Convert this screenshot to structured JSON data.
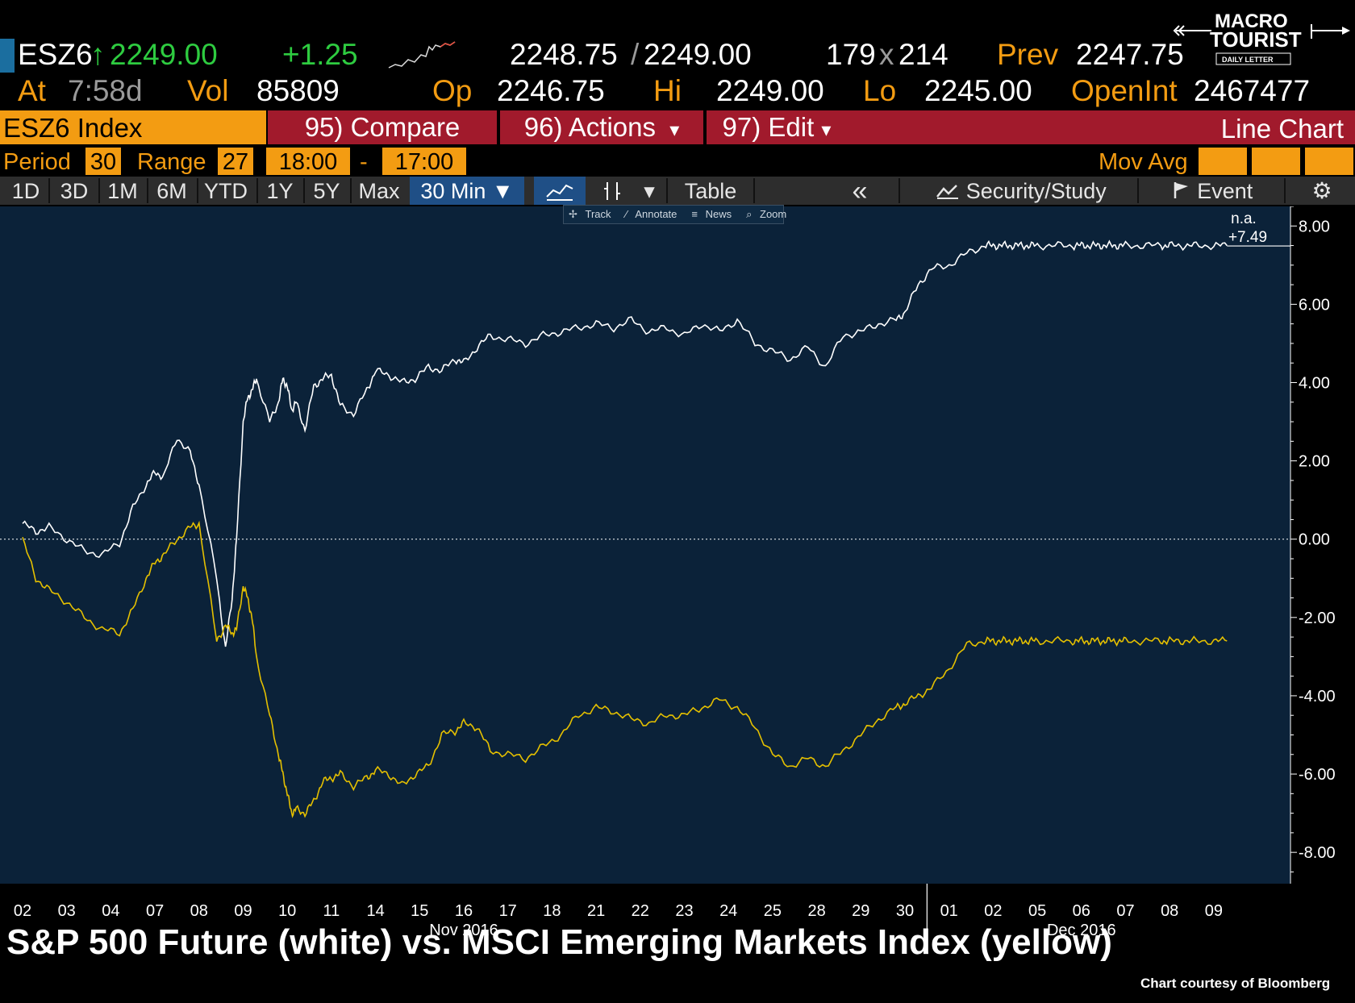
{
  "quote": {
    "ticker": "ESZ6",
    "last_arrow": "↑",
    "last": "2249.00",
    "change": "+1.25",
    "bid_ask_bid": "2248.75",
    "bid_ask_sep": "/",
    "bid_ask_ask": "2249.00",
    "size_bid": "179",
    "size_sep": "x",
    "size_ask": "214",
    "prev_label": "Prev",
    "prev": "2247.75",
    "at_label": "At",
    "at_time": "7:58d",
    "vol_label": "Vol",
    "vol": "85809",
    "op_label": "Op",
    "op": "2246.75",
    "hi_label": "Hi",
    "hi": "2249.00",
    "lo_label": "Lo",
    "lo": "2245.00",
    "openint_label": "OpenInt",
    "openint": "2467477"
  },
  "logo": {
    "line1": "MACRO",
    "line2": "TOURIST",
    "line3": "DAILY LETTER"
  },
  "titlebar": {
    "index": "ESZ6 Index",
    "compare": "95) Compare",
    "actions": "96) Actions",
    "edit": "97) Edit",
    "chart_type": "Line Chart",
    "dropdown_glyph": "▾"
  },
  "settings": {
    "period_label": "Period",
    "period_value": "30",
    "range_label": "Range",
    "range_value": "27",
    "start_time": "18:00",
    "dash": "-",
    "end_time": "17:00",
    "mov_avg_label": "Mov Avg"
  },
  "toolbar": {
    "ranges": [
      "1D",
      "3D",
      "1M",
      "6M",
      "YTD",
      "1Y",
      "5Y",
      "Max"
    ],
    "interval": "30 Min ▼",
    "table": "Table",
    "back": "«",
    "security_study": "Security/Study",
    "event": "Event",
    "settings_icon": "gear-icon"
  },
  "mini_toolbar": {
    "track": "Track",
    "annotate": "Annotate",
    "news": "News",
    "zoom": "Zoom"
  },
  "caption": {
    "title": "S&P 500 Future (white) vs. MSCI Emerging Markets Index (yellow)",
    "credit": "Chart courtesy of Bloomberg"
  },
  "colors": {
    "background": "#000000",
    "plot_bg": "#0b2239",
    "orange": "#f39c12",
    "green": "#2ecc40",
    "red_bar": "#a11a2c",
    "sp500_line": "#ffffff",
    "em_line": "#e5c000"
  },
  "chart_data": {
    "type": "line",
    "title": "S&P 500 Future (white) vs. MSCI Emerging Markets Index (yellow)",
    "ylabel": "",
    "xlabel": "",
    "ylim": [
      -8.8,
      8.5
    ],
    "yticks": [
      "8.00",
      "6.00",
      "4.00",
      "2.00",
      "0.00",
      "-2.00",
      "-4.00",
      "-6.00",
      "-8.00"
    ],
    "ytick_values": [
      8,
      6,
      4,
      2,
      0,
      -2,
      -4,
      -6,
      -8
    ],
    "categories": [
      "02",
      "03",
      "04",
      "07",
      "08",
      "09",
      "10",
      "11",
      "14",
      "15",
      "16",
      "17",
      "18",
      "21",
      "22",
      "23",
      "24",
      "25",
      "28",
      "29",
      "30",
      "01",
      "02",
      "05",
      "06",
      "07",
      "08",
      "09"
    ],
    "month_labels": [
      {
        "label": "Nov 2016",
        "from_index": 0,
        "to_index": 20
      },
      {
        "label": "Dec 2016",
        "from_index": 21,
        "to_index": 27
      }
    ],
    "last_value_annotation": {
      "top": "n.a.",
      "bottom": "+7.49",
      "value": 7.49
    },
    "zero_line": true,
    "series": [
      {
        "name": "S&P 500 Future",
        "color": "#ffffff",
        "x": [
          0,
          0.3,
          0.6,
          1,
          1.4,
          1.8,
          2.2,
          2.5,
          2.8,
          3,
          3.2,
          3.5,
          3.8,
          4,
          4.4,
          4.6,
          4.75,
          4.85,
          5,
          5.1,
          5.2,
          5.3,
          5.6,
          5.8,
          5.9,
          6,
          6.1,
          6.2,
          6.4,
          6.6,
          6.8,
          7,
          7.2,
          7.5,
          7.8,
          8,
          8.3,
          8.6,
          8.9,
          9.2,
          9.5,
          9.8,
          10,
          10.3,
          10.6,
          11,
          11.4,
          11.8,
          12.2,
          12.6,
          13,
          13.4,
          13.8,
          14.2,
          14.6,
          15,
          15.4,
          15.8,
          16.2,
          16.6,
          17,
          17.4,
          17.8,
          18.2,
          18.6,
          19,
          19.4,
          19.8,
          20,
          20.3,
          20.6,
          21,
          21.4,
          21.8,
          22,
          22.2,
          22.4,
          22.6,
          22.8,
          23,
          23.4,
          23.8,
          24,
          24.2,
          24.4,
          24.6,
          24.8,
          25,
          25.4,
          25.8,
          26,
          26.3,
          26.6,
          27,
          27.3
        ],
        "values": [
          0.4,
          0.2,
          0.3,
          0.0,
          -0.3,
          -0.4,
          -0.1,
          0.8,
          1.4,
          1.7,
          1.6,
          2.6,
          2.2,
          1.4,
          -1.0,
          -2.8,
          -1.5,
          0.0,
          3.0,
          3.6,
          3.8,
          4.1,
          3.0,
          3.5,
          4.1,
          3.9,
          3.3,
          3.5,
          2.8,
          3.9,
          4.1,
          4.2,
          3.4,
          3.2,
          3.8,
          4.3,
          4.2,
          4.0,
          4.1,
          4.4,
          4.3,
          4.6,
          4.5,
          4.9,
          5.2,
          5.1,
          5.0,
          5.2,
          5.3,
          5.4,
          5.5,
          5.4,
          5.6,
          5.3,
          5.4,
          5.2,
          5.5,
          5.3,
          5.6,
          5.0,
          4.8,
          4.6,
          4.9,
          4.4,
          5.2,
          5.3,
          5.5,
          5.6,
          5.8,
          6.5,
          6.9,
          7.0,
          7.3,
          7.5,
          7.5,
          7.5,
          7.5,
          7.5,
          7.5,
          7.5,
          7.5,
          7.5,
          7.5,
          7.5,
          7.5,
          7.5,
          7.5,
          7.5,
          7.5,
          7.5,
          7.5,
          7.5,
          7.5,
          7.5,
          7.5
        ]
      },
      {
        "name": "MSCI Emerging Markets Index",
        "color": "#e5c000",
        "x": [
          0,
          0.3,
          0.6,
          1,
          1.4,
          1.8,
          2.2,
          2.5,
          2.8,
          3,
          3.2,
          3.5,
          3.8,
          4,
          4.4,
          4.6,
          4.75,
          4.85,
          5,
          5.1,
          5.2,
          5.3,
          5.6,
          5.8,
          5.9,
          6,
          6.1,
          6.2,
          6.4,
          6.6,
          6.8,
          7,
          7.2,
          7.5,
          7.8,
          8,
          8.3,
          8.6,
          8.9,
          9.2,
          9.5,
          9.8,
          10,
          10.3,
          10.6,
          11,
          11.4,
          11.8,
          12.2,
          12.6,
          13,
          13.4,
          13.8,
          14.2,
          14.6,
          15,
          15.4,
          15.8,
          16.2,
          16.6,
          17,
          17.4,
          17.8,
          18.2,
          18.6,
          19,
          19.4,
          19.8,
          20,
          20.3,
          20.6,
          21,
          21.4,
          21.8,
          22,
          22.2,
          22.4,
          22.6,
          22.8,
          23,
          23.4,
          23.8,
          24,
          24.2,
          24.4,
          24.6,
          24.8,
          25,
          25.4,
          25.8,
          26,
          26.3,
          26.6,
          27,
          27.3
        ],
        "values": [
          0.0,
          -1.0,
          -1.3,
          -1.6,
          -2.0,
          -2.3,
          -2.4,
          -1.8,
          -1.0,
          -0.6,
          -0.4,
          0.0,
          0.3,
          0.4,
          -2.6,
          -2.2,
          -2.4,
          -2.3,
          -1.2,
          -1.5,
          -2.0,
          -3.0,
          -4.5,
          -5.5,
          -6.0,
          -6.5,
          -7.0,
          -6.9,
          -7.0,
          -6.7,
          -6.2,
          -6.1,
          -6.0,
          -6.3,
          -6.1,
          -5.9,
          -6.0,
          -6.3,
          -6.0,
          -5.8,
          -5.0,
          -4.9,
          -4.7,
          -4.8,
          -5.4,
          -5.5,
          -5.6,
          -5.3,
          -5.0,
          -4.5,
          -4.3,
          -4.4,
          -4.6,
          -4.7,
          -4.5,
          -4.5,
          -4.3,
          -4.1,
          -4.3,
          -4.8,
          -5.5,
          -5.8,
          -5.6,
          -5.8,
          -5.4,
          -5.0,
          -4.6,
          -4.3,
          -4.2,
          -4.0,
          -3.8,
          -3.3,
          -2.7,
          -2.6,
          -2.6,
          -2.6,
          -2.6,
          -2.6,
          -2.6,
          -2.6,
          -2.6,
          -2.6,
          -2.6,
          -2.6,
          -2.6,
          -2.6,
          -2.6,
          -2.6,
          -2.6,
          -2.6,
          -2.6,
          -2.6,
          -2.6,
          -2.6,
          -2.6
        ]
      }
    ]
  }
}
